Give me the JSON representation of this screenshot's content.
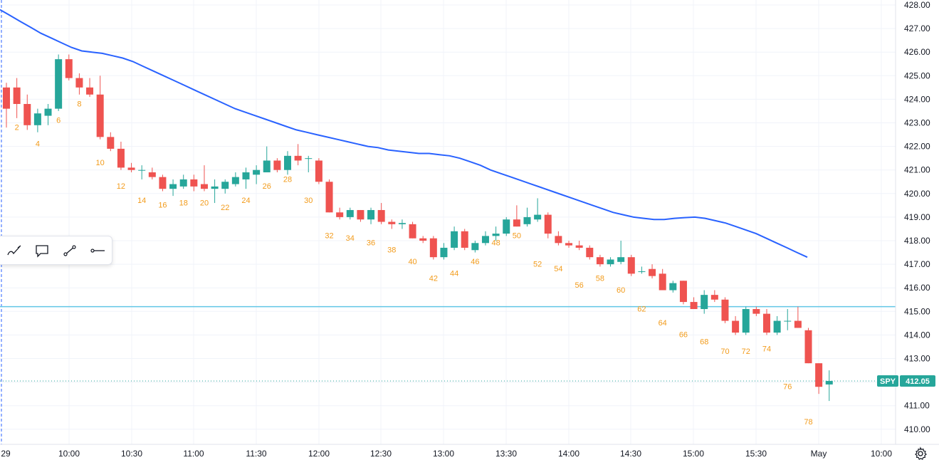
{
  "symbol": "SPY",
  "last_price_label": "412.05",
  "colors": {
    "up": "#26a69a",
    "down": "#ef5350",
    "ma": "#2962ff",
    "hline": "#62c6e6",
    "count": "#f29b1b"
  },
  "icons": [
    "brush-icon",
    "comment-icon",
    "trend-line-icon",
    "horizontal-ray-icon",
    "settings-gear-icon"
  ],
  "chart_data": {
    "type": "candlestick",
    "symbol": "SPY",
    "ylim": [
      409.5,
      428.2
    ],
    "y_ticks": [
      "428.00",
      "427.00",
      "426.00",
      "425.00",
      "424.00",
      "423.00",
      "422.00",
      "421.00",
      "420.00",
      "419.00",
      "418.00",
      "417.00",
      "416.00",
      "415.00",
      "414.00",
      "413.00",
      "412.00",
      "411.00",
      "410.00"
    ],
    "x_labels": [
      "29",
      "10:00",
      "10:30",
      "11:00",
      "11:30",
      "12:00",
      "12:30",
      "13:00",
      "13:30",
      "14:00",
      "14:30",
      "15:00",
      "15:30",
      "May",
      "10:00"
    ],
    "horizontal_line": 415.2,
    "last_price": 412.05,
    "candles": [
      {
        "o": 424.5,
        "h": 424.7,
        "l": 422.8,
        "c": 423.6
      },
      {
        "o": 424.5,
        "h": 424.9,
        "l": 423.2,
        "c": 423.8
      },
      {
        "o": 423.8,
        "h": 424.2,
        "l": 422.7,
        "c": 422.9
      },
      {
        "o": 422.9,
        "h": 423.6,
        "l": 422.6,
        "c": 423.4
      },
      {
        "o": 423.3,
        "h": 423.8,
        "l": 422.9,
        "c": 423.6
      },
      {
        "o": 423.6,
        "h": 425.9,
        "l": 423.5,
        "c": 425.7
      },
      {
        "o": 425.7,
        "h": 425.9,
        "l": 424.8,
        "c": 424.9
      },
      {
        "o": 424.9,
        "h": 425.1,
        "l": 424.2,
        "c": 424.5
      },
      {
        "o": 424.5,
        "h": 424.9,
        "l": 424.1,
        "c": 424.2
      },
      {
        "o": 424.2,
        "h": 425.0,
        "l": 422.3,
        "c": 422.4
      },
      {
        "o": 422.4,
        "h": 422.6,
        "l": 421.8,
        "c": 421.9
      },
      {
        "o": 421.9,
        "h": 422.2,
        "l": 421.0,
        "c": 421.1
      },
      {
        "o": 421.1,
        "h": 421.3,
        "l": 420.9,
        "c": 421.0
      },
      {
        "o": 421.0,
        "h": 421.2,
        "l": 420.6,
        "c": 421.0
      },
      {
        "o": 420.9,
        "h": 421.1,
        "l": 420.6,
        "c": 420.7
      },
      {
        "o": 420.7,
        "h": 420.8,
        "l": 420.1,
        "c": 420.2
      },
      {
        "o": 420.2,
        "h": 420.6,
        "l": 419.9,
        "c": 420.4
      },
      {
        "o": 420.3,
        "h": 420.8,
        "l": 420.2,
        "c": 420.6
      },
      {
        "o": 420.6,
        "h": 420.8,
        "l": 420.1,
        "c": 420.3
      },
      {
        "o": 420.4,
        "h": 421.2,
        "l": 420.1,
        "c": 420.2
      },
      {
        "o": 420.2,
        "h": 420.6,
        "l": 419.6,
        "c": 420.3
      },
      {
        "o": 420.2,
        "h": 420.6,
        "l": 420.0,
        "c": 420.5
      },
      {
        "o": 420.4,
        "h": 420.9,
        "l": 420.3,
        "c": 420.7
      },
      {
        "o": 420.6,
        "h": 421.1,
        "l": 420.2,
        "c": 420.9
      },
      {
        "o": 420.8,
        "h": 421.2,
        "l": 420.4,
        "c": 421.0
      },
      {
        "o": 420.9,
        "h": 422.0,
        "l": 420.9,
        "c": 421.4
      },
      {
        "o": 421.4,
        "h": 421.5,
        "l": 420.9,
        "c": 421.0
      },
      {
        "o": 421.0,
        "h": 421.8,
        "l": 420.8,
        "c": 421.6
      },
      {
        "o": 421.6,
        "h": 422.1,
        "l": 421.2,
        "c": 421.4
      },
      {
        "o": 421.5,
        "h": 421.6,
        "l": 420.9,
        "c": 421.5
      },
      {
        "o": 421.4,
        "h": 421.5,
        "l": 420.4,
        "c": 420.5
      },
      {
        "o": 420.5,
        "h": 420.6,
        "l": 419.2,
        "c": 419.2
      },
      {
        "o": 419.2,
        "h": 419.4,
        "l": 418.9,
        "c": 419.0
      },
      {
        "o": 419.0,
        "h": 419.4,
        "l": 418.9,
        "c": 419.3
      },
      {
        "o": 419.3,
        "h": 419.3,
        "l": 418.8,
        "c": 418.9
      },
      {
        "o": 418.9,
        "h": 419.4,
        "l": 418.7,
        "c": 419.3
      },
      {
        "o": 419.3,
        "h": 419.6,
        "l": 418.7,
        "c": 418.8
      },
      {
        "o": 418.8,
        "h": 418.9,
        "l": 418.5,
        "c": 418.7
      },
      {
        "o": 418.7,
        "h": 418.9,
        "l": 418.5,
        "c": 418.75
      },
      {
        "o": 418.7,
        "h": 418.8,
        "l": 418.1,
        "c": 418.1
      },
      {
        "o": 418.1,
        "h": 418.2,
        "l": 417.9,
        "c": 418.0
      },
      {
        "o": 418.1,
        "h": 418.2,
        "l": 417.2,
        "c": 417.3
      },
      {
        "o": 417.3,
        "h": 417.9,
        "l": 417.2,
        "c": 417.7
      },
      {
        "o": 417.7,
        "h": 418.6,
        "l": 417.6,
        "c": 418.4
      },
      {
        "o": 418.4,
        "h": 418.5,
        "l": 417.6,
        "c": 417.7
      },
      {
        "o": 417.6,
        "h": 418.0,
        "l": 417.5,
        "c": 417.9
      },
      {
        "o": 417.9,
        "h": 418.4,
        "l": 417.8,
        "c": 418.2
      },
      {
        "o": 418.2,
        "h": 418.6,
        "l": 418.0,
        "c": 418.3
      },
      {
        "o": 418.3,
        "h": 419.0,
        "l": 418.2,
        "c": 418.9
      },
      {
        "o": 418.9,
        "h": 419.5,
        "l": 418.6,
        "c": 418.6
      },
      {
        "o": 418.7,
        "h": 419.4,
        "l": 418.6,
        "c": 419.0
      },
      {
        "o": 418.9,
        "h": 419.8,
        "l": 418.8,
        "c": 419.1
      },
      {
        "o": 419.1,
        "h": 419.2,
        "l": 418.1,
        "c": 418.3
      },
      {
        "o": 418.2,
        "h": 418.4,
        "l": 417.8,
        "c": 417.9
      },
      {
        "o": 417.9,
        "h": 418.0,
        "l": 417.7,
        "c": 417.8
      },
      {
        "o": 417.8,
        "h": 418.0,
        "l": 417.6,
        "c": 417.7
      },
      {
        "o": 417.7,
        "h": 417.8,
        "l": 417.2,
        "c": 417.3
      },
      {
        "o": 417.3,
        "h": 417.4,
        "l": 416.9,
        "c": 417.0
      },
      {
        "o": 417.0,
        "h": 417.3,
        "l": 416.9,
        "c": 417.2
      },
      {
        "o": 417.1,
        "h": 418.0,
        "l": 417.0,
        "c": 417.3
      },
      {
        "o": 417.3,
        "h": 417.4,
        "l": 416.5,
        "c": 416.6
      },
      {
        "o": 416.7,
        "h": 416.9,
        "l": 416.6,
        "c": 416.7
      },
      {
        "o": 416.8,
        "h": 417.0,
        "l": 416.4,
        "c": 416.5
      },
      {
        "o": 416.6,
        "h": 416.8,
        "l": 415.9,
        "c": 415.9
      },
      {
        "o": 415.9,
        "h": 416.3,
        "l": 415.8,
        "c": 416.2
      },
      {
        "o": 416.3,
        "h": 416.3,
        "l": 415.3,
        "c": 415.4
      },
      {
        "o": 415.4,
        "h": 415.6,
        "l": 415.1,
        "c": 415.1
      },
      {
        "o": 415.1,
        "h": 415.9,
        "l": 414.9,
        "c": 415.7
      },
      {
        "o": 415.7,
        "h": 415.9,
        "l": 415.4,
        "c": 415.5
      },
      {
        "o": 415.5,
        "h": 415.6,
        "l": 414.5,
        "c": 414.6
      },
      {
        "o": 414.6,
        "h": 414.8,
        "l": 414.0,
        "c": 414.1
      },
      {
        "o": 414.1,
        "h": 415.2,
        "l": 414.0,
        "c": 415.1
      },
      {
        "o": 415.1,
        "h": 415.2,
        "l": 414.8,
        "c": 414.9
      },
      {
        "o": 414.9,
        "h": 415.1,
        "l": 414.0,
        "c": 414.1
      },
      {
        "o": 414.1,
        "h": 414.8,
        "l": 414.0,
        "c": 414.6
      },
      {
        "o": 414.6,
        "h": 415.1,
        "l": 414.2,
        "c": 414.6
      },
      {
        "o": 414.6,
        "h": 415.2,
        "l": 414.3,
        "c": 414.3
      },
      {
        "o": 414.2,
        "h": 414.3,
        "l": 412.8,
        "c": 412.8
      },
      {
        "o": 412.8,
        "h": 412.8,
        "l": 411.5,
        "c": 411.8
      },
      {
        "o": 411.9,
        "h": 412.5,
        "l": 411.2,
        "c": 412.05
      }
    ],
    "moving_average": [
      427.8,
      427.55,
      427.3,
      427.05,
      426.8,
      426.6,
      426.4,
      426.2,
      426.05,
      426.0,
      425.95,
      425.85,
      425.75,
      425.6,
      425.4,
      425.2,
      425.0,
      424.8,
      424.6,
      424.4,
      424.2,
      424.0,
      423.8,
      423.6,
      423.45,
      423.3,
      423.15,
      423.0,
      422.85,
      422.7,
      422.6,
      422.5,
      422.4,
      422.3,
      422.2,
      422.1,
      422.0,
      421.95,
      421.85,
      421.8,
      421.75,
      421.7,
      421.7,
      421.65,
      421.6,
      421.5,
      421.35,
      421.2,
      421.0,
      420.85,
      420.7,
      420.55,
      420.4,
      420.25,
      420.1,
      419.95,
      419.8,
      419.65,
      419.5,
      419.35,
      419.2,
      419.1,
      419.0,
      418.95,
      418.9,
      418.9,
      418.95,
      418.98,
      419.0,
      418.95,
      418.85,
      418.75,
      418.6,
      418.45,
      418.3,
      418.1,
      417.9,
      417.7,
      417.5,
      417.3
    ],
    "count_labels": [
      {
        "idx": 1,
        "text": "2",
        "y": 422.7
      },
      {
        "idx": 3,
        "text": "4",
        "y": 422.0
      },
      {
        "idx": 5,
        "text": "6",
        "y": 423.0
      },
      {
        "idx": 7,
        "text": "8",
        "y": 423.7
      },
      {
        "idx": 9,
        "text": "10",
        "y": 421.2
      },
      {
        "idx": 11,
        "text": "12",
        "y": 420.2
      },
      {
        "idx": 13,
        "text": "14",
        "y": 419.6
      },
      {
        "idx": 15,
        "text": "16",
        "y": 419.4
      },
      {
        "idx": 17,
        "text": "18",
        "y": 419.5
      },
      {
        "idx": 19,
        "text": "20",
        "y": 419.5
      },
      {
        "idx": 21,
        "text": "22",
        "y": 419.3
      },
      {
        "idx": 23,
        "text": "24",
        "y": 419.6
      },
      {
        "idx": 25,
        "text": "26",
        "y": 420.2
      },
      {
        "idx": 27,
        "text": "28",
        "y": 420.5
      },
      {
        "idx": 29,
        "text": "30",
        "y": 419.6
      },
      {
        "idx": 31,
        "text": "32",
        "y": 418.1
      },
      {
        "idx": 33,
        "text": "34",
        "y": 418.0
      },
      {
        "idx": 35,
        "text": "36",
        "y": 417.8
      },
      {
        "idx": 37,
        "text": "38",
        "y": 417.5
      },
      {
        "idx": 39,
        "text": "40",
        "y": 417.0
      },
      {
        "idx": 41,
        "text": "42",
        "y": 416.3
      },
      {
        "idx": 43,
        "text": "44",
        "y": 416.5
      },
      {
        "idx": 45,
        "text": "46",
        "y": 417.0
      },
      {
        "idx": 47,
        "text": "48",
        "y": 417.8
      },
      {
        "idx": 49,
        "text": "50",
        "y": 418.1
      },
      {
        "idx": 51,
        "text": "52",
        "y": 416.9
      },
      {
        "idx": 53,
        "text": "54",
        "y": 416.7
      },
      {
        "idx": 55,
        "text": "56",
        "y": 416.0
      },
      {
        "idx": 57,
        "text": "58",
        "y": 416.3
      },
      {
        "idx": 59,
        "text": "60",
        "y": 415.8
      },
      {
        "idx": 61,
        "text": "62",
        "y": 415.0
      },
      {
        "idx": 63,
        "text": "64",
        "y": 414.4
      },
      {
        "idx": 65,
        "text": "66",
        "y": 413.9
      },
      {
        "idx": 67,
        "text": "68",
        "y": 413.6
      },
      {
        "idx": 69,
        "text": "70",
        "y": 413.2
      },
      {
        "idx": 71,
        "text": "72",
        "y": 413.2
      },
      {
        "idx": 73,
        "text": "74",
        "y": 413.3
      },
      {
        "idx": 75,
        "text": "76",
        "y": 411.7
      },
      {
        "idx": 77,
        "text": "78",
        "y": 410.2
      }
    ]
  }
}
